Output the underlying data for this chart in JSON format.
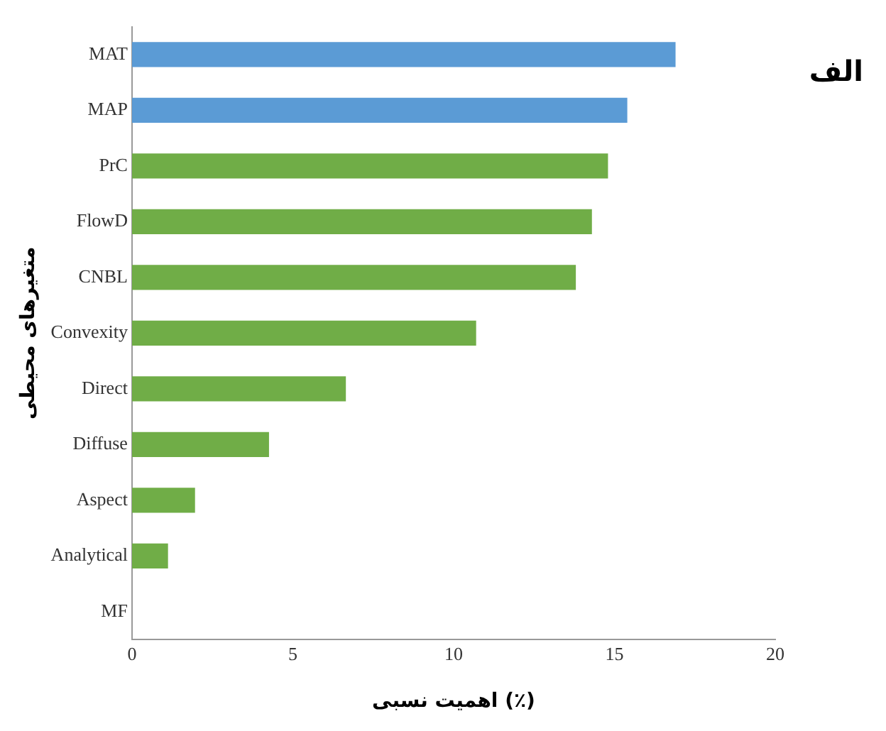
{
  "chart_data": {
    "type": "bar",
    "orientation": "horizontal",
    "categories": [
      "MAT",
      "MAP",
      "PrC",
      "FlowD",
      "CNBL",
      "Convexity",
      "Direct",
      "Diffuse",
      "Aspect",
      "Analytical",
      "MF"
    ],
    "values": [
      16.9,
      15.4,
      14.8,
      14.3,
      13.8,
      10.7,
      6.65,
      4.26,
      1.96,
      1.12,
      0
    ],
    "colors": [
      "#5b9bd5",
      "#5b9bd5",
      "#70ad47",
      "#70ad47",
      "#70ad47",
      "#70ad47",
      "#70ad47",
      "#70ad47",
      "#70ad47",
      "#70ad47",
      "#70ad47"
    ],
    "xlim": [
      0,
      20
    ],
    "xticks": [
      0,
      5,
      10,
      15,
      20
    ],
    "xlabel": "اهمیت نسبی (٪)",
    "ylabel": "متغیرهای محیطی",
    "grid": false,
    "legend": false,
    "annotations": [
      "الف"
    ]
  }
}
